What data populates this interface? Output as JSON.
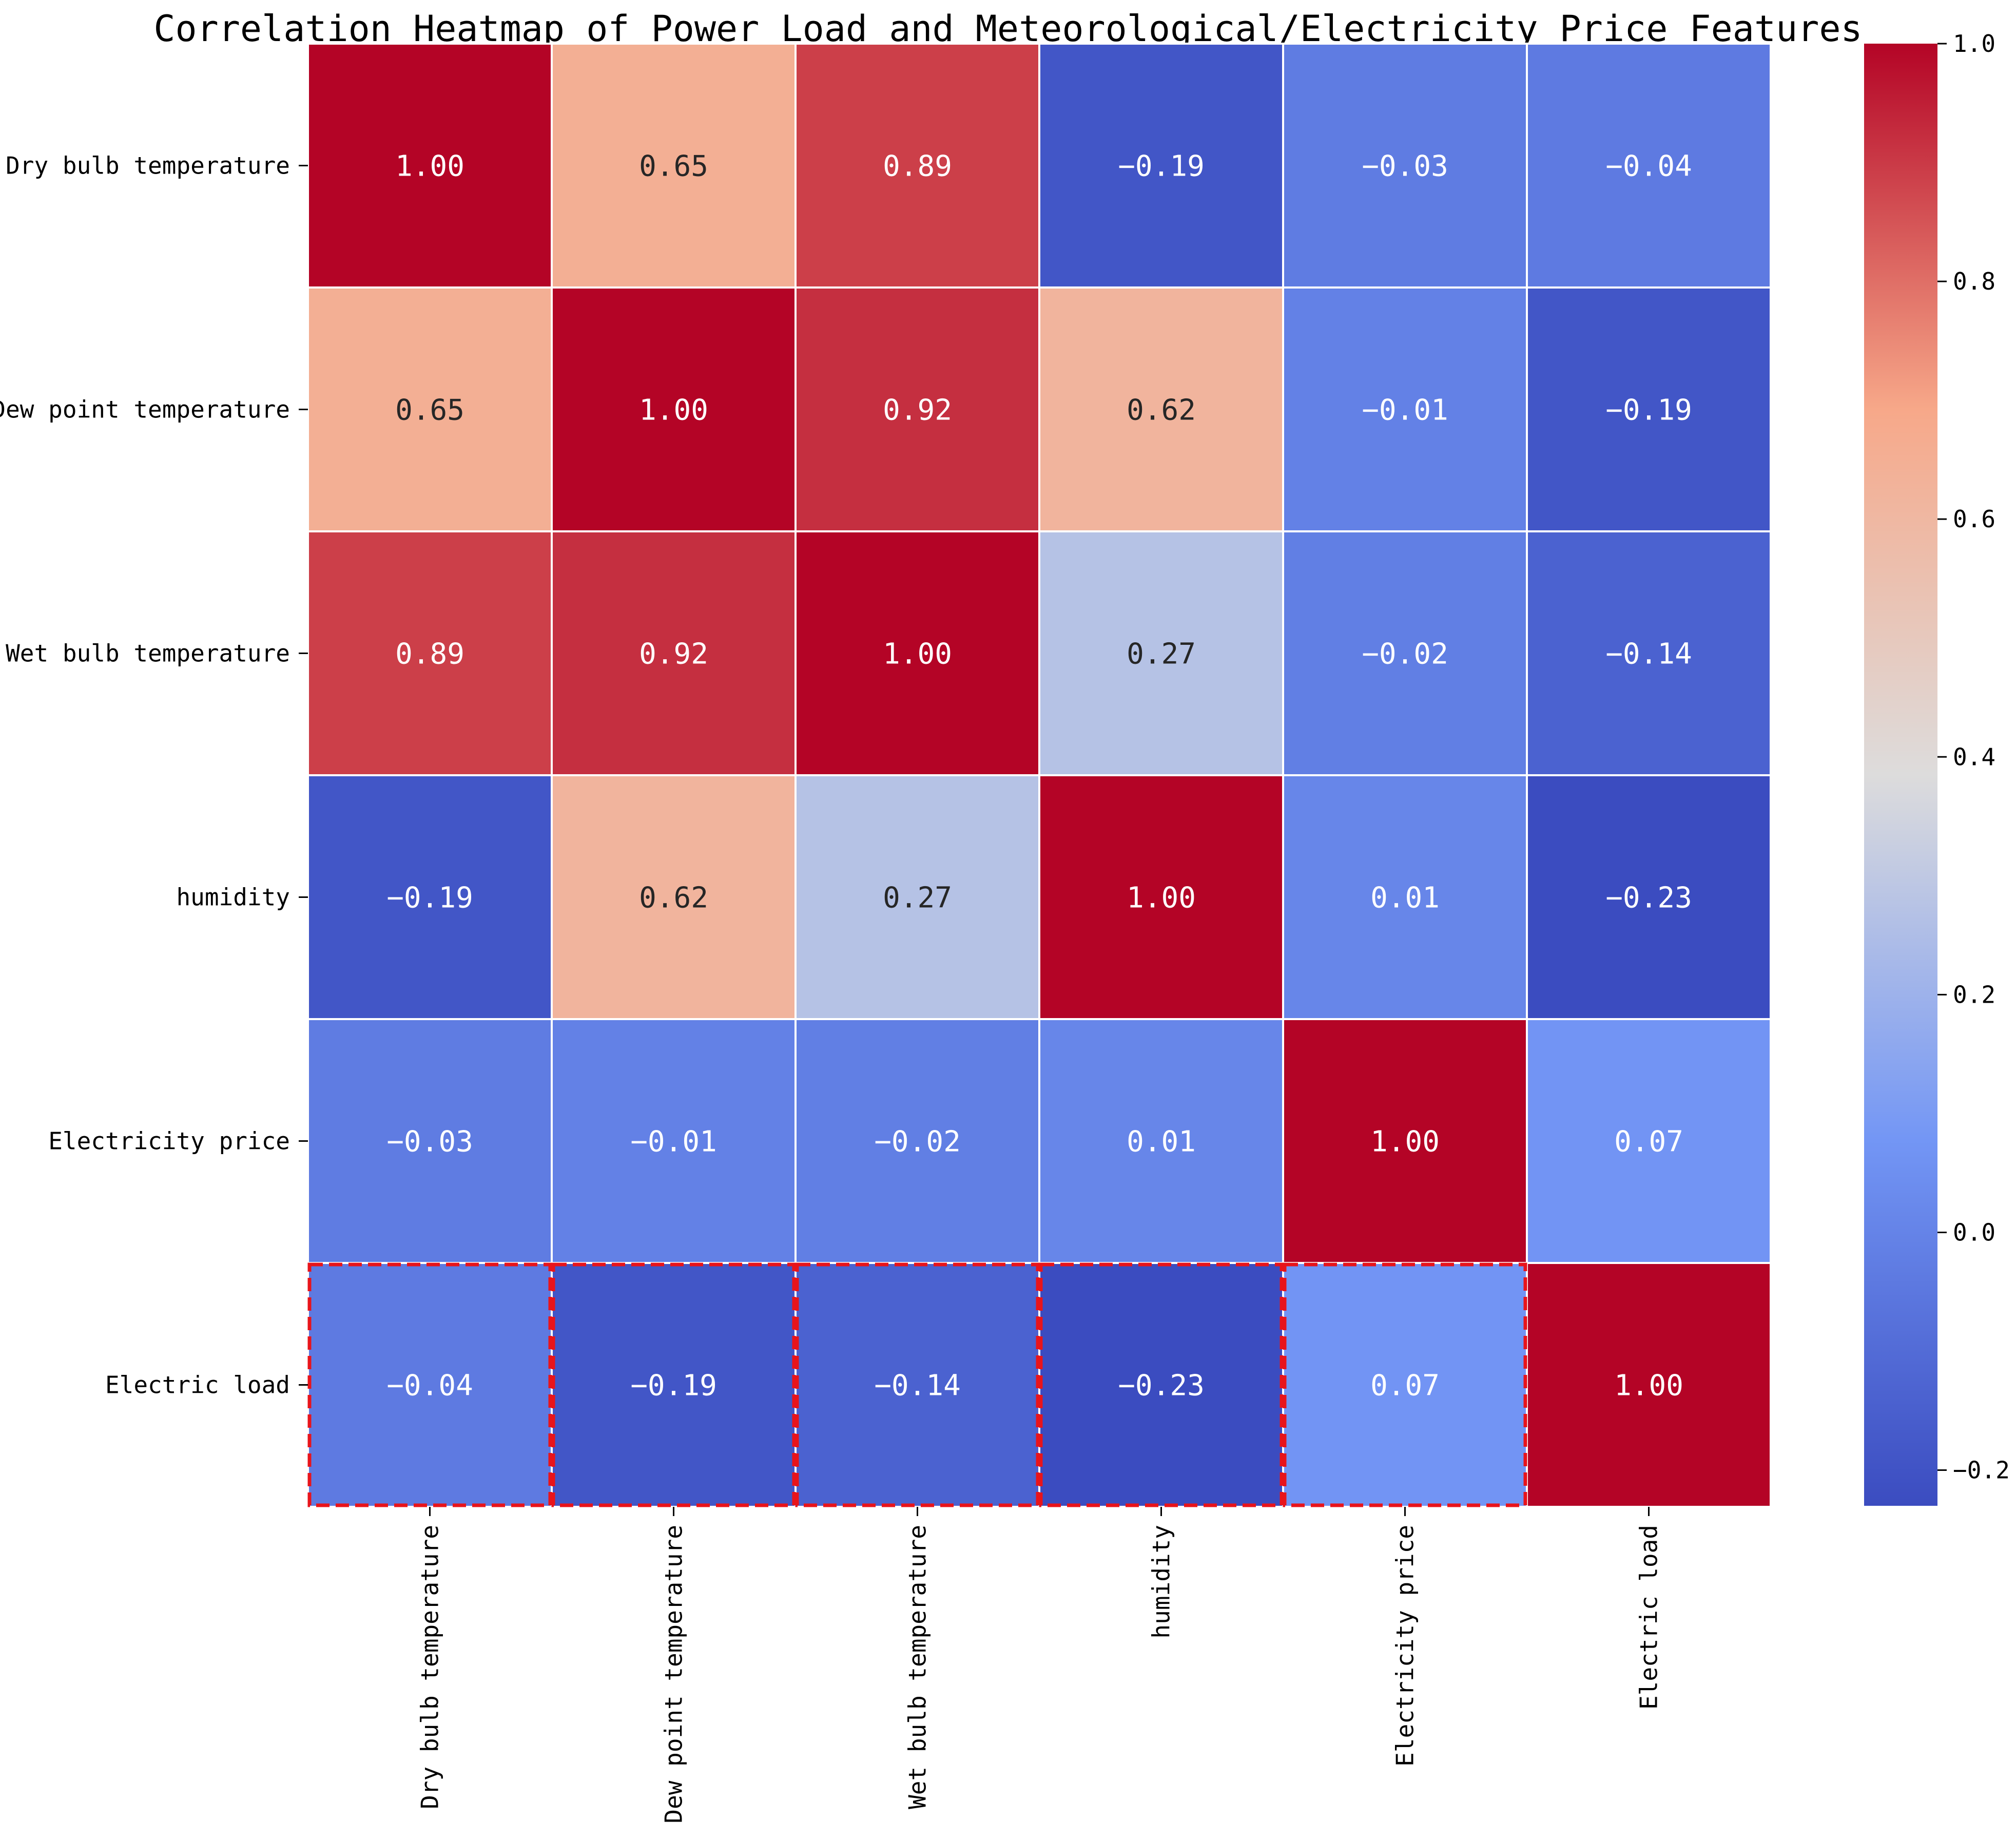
{
  "chart_data": {
    "type": "heatmap",
    "title": "Correlation Heatmap of Power Load and Meteorological/Electricity Price Features",
    "rows": [
      "Dry bulb temperature",
      "Dew point temperature",
      "Wet bulb temperature",
      "humidity",
      "Electricity price",
      "Electric load"
    ],
    "columns": [
      "Dry bulb temperature",
      "Dew point temperature",
      "Wet bulb temperature",
      "humidity",
      "Electricity price",
      "Electric load"
    ],
    "values": [
      [
        1.0,
        0.65,
        0.89,
        -0.19,
        -0.03,
        -0.04
      ],
      [
        0.65,
        1.0,
        0.92,
        0.62,
        -0.01,
        -0.19
      ],
      [
        0.89,
        0.92,
        1.0,
        0.27,
        -0.02,
        -0.14
      ],
      [
        -0.19,
        0.62,
        0.27,
        1.0,
        0.01,
        -0.23
      ],
      [
        -0.03,
        -0.01,
        -0.02,
        0.01,
        1.0,
        0.07
      ],
      [
        -0.04,
        -0.19,
        -0.14,
        -0.23,
        0.07,
        1.0
      ]
    ],
    "colormap": "coolwarm",
    "vmin": -0.23,
    "vmax": 1.0,
    "colorbar_ticks": [
      "1.0",
      "0.8",
      "0.6",
      "0.4",
      "0.2",
      "0.0",
      "−0.2"
    ],
    "colorbar_tick_values": [
      1.0,
      0.8,
      0.6,
      0.4,
      0.2,
      0.0,
      -0.2
    ],
    "highlighted_row": "Electric load",
    "highlight_color": "#e8141b",
    "grid_line_color": "#ffffff"
  }
}
